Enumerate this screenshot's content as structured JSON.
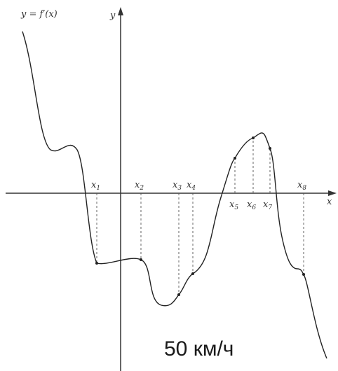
{
  "graph": {
    "function_label": "y = f′(x)",
    "y_axis_label": "y",
    "x_axis_label": "x",
    "points": [
      {
        "name": "x1",
        "sub": "1"
      },
      {
        "name": "x2",
        "sub": "2"
      },
      {
        "name": "x3",
        "sub": "3"
      },
      {
        "name": "x4",
        "sub": "4"
      },
      {
        "name": "x5",
        "sub": "5"
      },
      {
        "name": "x6",
        "sub": "6"
      },
      {
        "name": "x7",
        "sub": "7"
      },
      {
        "name": "x8",
        "sub": "8"
      }
    ]
  },
  "caption": "50 км/ч",
  "colors": {
    "curve": "#222222",
    "axes": "#333333",
    "dashes": "#555555"
  }
}
